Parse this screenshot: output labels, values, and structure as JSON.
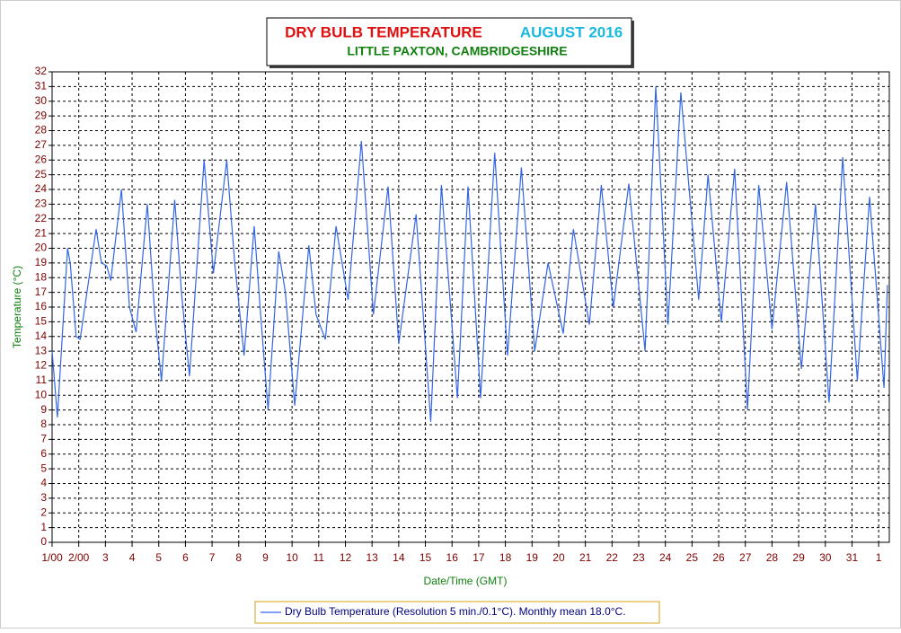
{
  "chart_data": {
    "type": "line",
    "title": "DRY BULB TEMPERATURE",
    "title_period": "AUGUST 2016",
    "subtitle": "LITTLE PAXTON, CAMBRIDGESHIRE",
    "xlabel": "Date/Time (GMT)",
    "ylabel": "Temperature (°C)",
    "x": [
      0,
      0.2,
      0.58,
      0.68,
      0.9,
      1.05,
      1.65,
      1.85,
      2.05,
      2.2,
      2.6,
      2.9,
      3.15,
      3.57,
      3.85,
      4.1,
      4.6,
      4.85,
      5.15,
      5.7,
      6.05,
      6.55,
      6.85,
      7.2,
      7.58,
      7.8,
      8.1,
      8.5,
      8.75,
      9.1,
      9.63,
      9.9,
      10.25,
      10.65,
      11.1,
      11.6,
      12.05,
      12.6,
      13.0,
      13.65,
      14.2,
      14.6,
      15.2,
      15.6,
      16.07,
      16.6,
      17.08,
      17.6,
      18.1,
      18.6,
      19.17,
      19.55,
      20.15,
      20.6,
      21.05,
      21.63,
      22.24,
      22.64,
      23.1,
      23.58,
      24.25,
      24.6,
      25.1,
      25.6,
      26.08,
      26.5,
      27.0,
      27.55,
      28.1,
      28.63,
      29.14,
      29.65,
      30.2,
      30.66,
      31.2,
      31.33
    ],
    "series": [
      {
        "name": "Dry Bulb Temperature (Resolution 5 min./0.1°C). Monthly mean 18.0°C.",
        "color": "#3366e6",
        "values": [
          13,
          8.5,
          20,
          19,
          14,
          13.8,
          21.3,
          19,
          18.8,
          17.8,
          24,
          16,
          14.3,
          23,
          15.5,
          11,
          23.3,
          17,
          11.3,
          26,
          18.3,
          26,
          19,
          12.7,
          21.5,
          16,
          9,
          19.8,
          17,
          9.3,
          20.2,
          15.5,
          13.8,
          21.5,
          16.5,
          27.3,
          15.5,
          24.2,
          13.5,
          22.3,
          8.2,
          24.3,
          9.8,
          24.2,
          9.8,
          26.5,
          12.7,
          25.5,
          13,
          19,
          14.2,
          21.3,
          14.8,
          24.3,
          16,
          24.4,
          13,
          31,
          14.8,
          30.6,
          16.5,
          25,
          15,
          25.4,
          9,
          24.3,
          14.5,
          24.5,
          11.8,
          23,
          9.5,
          26.2,
          11,
          23.5,
          10.5,
          17.5
        ]
      }
    ],
    "xlim": [
      0,
      31.4
    ],
    "xticks": [
      {
        "value": 0,
        "label": "1/00"
      },
      {
        "value": 1,
        "label": "2/00"
      },
      {
        "value": 2,
        "label": "3"
      },
      {
        "value": 3,
        "label": "4"
      },
      {
        "value": 4,
        "label": "5"
      },
      {
        "value": 5,
        "label": "6"
      },
      {
        "value": 6,
        "label": "7"
      },
      {
        "value": 7,
        "label": "8"
      },
      {
        "value": 8,
        "label": "9"
      },
      {
        "value": 9,
        "label": "10"
      },
      {
        "value": 10,
        "label": "11"
      },
      {
        "value": 11,
        "label": "12"
      },
      {
        "value": 12,
        "label": "13"
      },
      {
        "value": 13,
        "label": "14"
      },
      {
        "value": 14,
        "label": "15"
      },
      {
        "value": 15,
        "label": "16"
      },
      {
        "value": 16,
        "label": "17"
      },
      {
        "value": 17,
        "label": "18"
      },
      {
        "value": 18,
        "label": "19"
      },
      {
        "value": 19,
        "label": "20"
      },
      {
        "value": 20,
        "label": "21"
      },
      {
        "value": 21,
        "label": "22"
      },
      {
        "value": 22,
        "label": "23"
      },
      {
        "value": 23,
        "label": "24"
      },
      {
        "value": 24,
        "label": "25"
      },
      {
        "value": 25,
        "label": "26"
      },
      {
        "value": 26,
        "label": "27"
      },
      {
        "value": 27,
        "label": "28"
      },
      {
        "value": 28,
        "label": "29"
      },
      {
        "value": 29,
        "label": "30"
      },
      {
        "value": 30,
        "label": "31"
      },
      {
        "value": 31,
        "label": "1"
      }
    ],
    "ylim": [
      0,
      32
    ],
    "yticks": [
      0,
      1,
      2,
      3,
      4,
      5,
      6,
      7,
      8,
      9,
      10,
      11,
      12,
      13,
      14,
      15,
      16,
      17,
      18,
      19,
      20,
      21,
      22,
      23,
      24,
      25,
      26,
      27,
      28,
      29,
      30,
      31,
      32
    ],
    "grid": true
  }
}
